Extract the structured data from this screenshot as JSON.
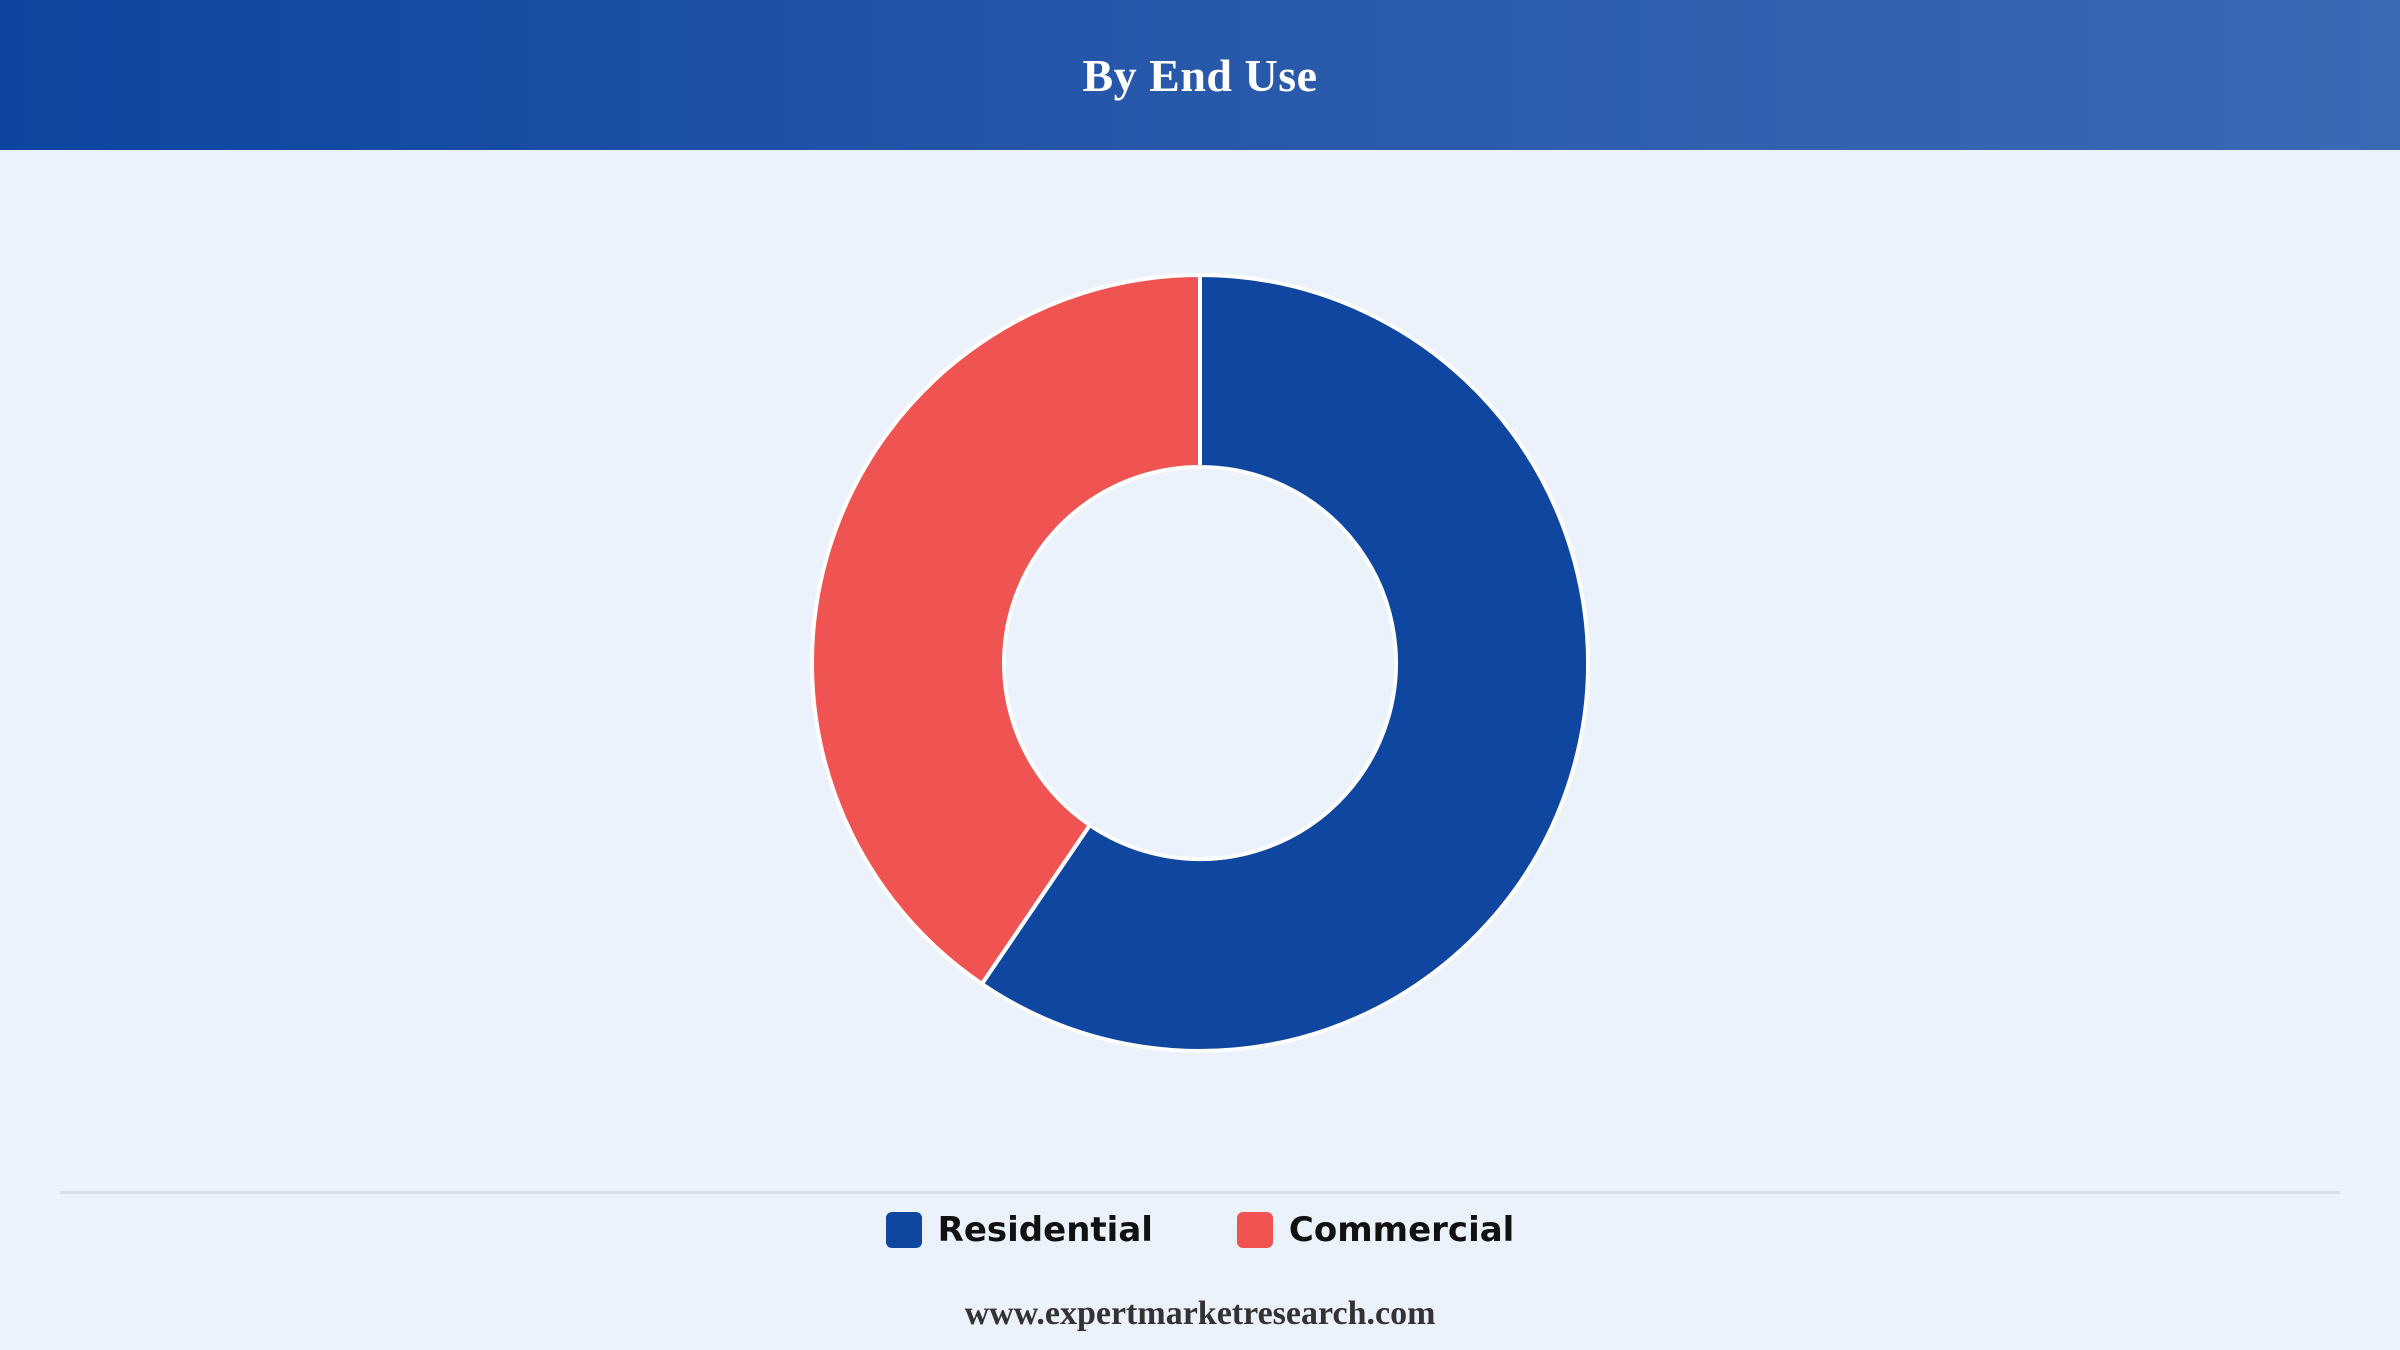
{
  "header": {
    "title": "By End Use"
  },
  "chart_data": {
    "type": "pie",
    "variant": "donut",
    "title": "By End Use",
    "categories": [
      "Residential",
      "Commercial"
    ],
    "values": [
      59.5,
      40.5
    ],
    "colors": [
      "#0e46a0",
      "#ef5452"
    ],
    "legend_position": "bottom-center"
  },
  "legend": {
    "items": [
      {
        "label": "Residential",
        "color": "#0e46a0"
      },
      {
        "label": "Commercial",
        "color": "#ef5452"
      }
    ]
  },
  "footer": {
    "source": "www.expertmarketresearch.com"
  },
  "colors": {
    "background": "#ebf2fc",
    "header_start": "#0d45a0",
    "header_end": "#3a6ab4",
    "slice_border": "#ffffff"
  }
}
